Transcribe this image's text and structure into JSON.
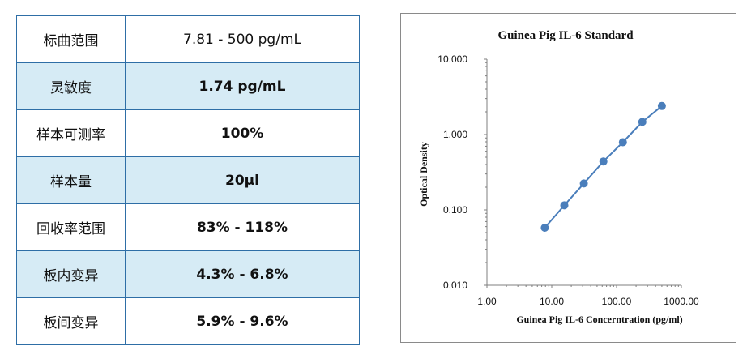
{
  "spec_table": {
    "rows": [
      {
        "label": "标曲范围",
        "value": "7.81 - 500 pg/mL"
      },
      {
        "label": "灵敏度",
        "value": "1.74 pg/mL"
      },
      {
        "label": "样本可测率",
        "value": "100%"
      },
      {
        "label": "样本量",
        "value": "20μl"
      },
      {
        "label": "回收率范围",
        "value": "83% - 118%"
      },
      {
        "label": "板内变异",
        "value": "4.3% - 6.8%"
      },
      {
        "label": "板间变异",
        "value": "5.9% - 9.6%"
      }
    ]
  },
  "colors": {
    "table_border": "#2e6ea6",
    "row_shade": "#d6ebf5",
    "series": "#4a7ebb"
  },
  "chart_data": {
    "type": "line",
    "title": "Guinea Pig IL-6 Standard",
    "xlabel": "Guinea Pig IL-6 Concerntration (pg/ml)",
    "ylabel": "Optical Density",
    "x_scale": "log",
    "y_scale": "log",
    "xlim": [
      1,
      1000
    ],
    "ylim": [
      0.01,
      10
    ],
    "x_ticks": [
      "1.00",
      "10.00",
      "100.00",
      "1000.00"
    ],
    "y_ticks": [
      "0.010",
      "0.100",
      "1.000",
      "10.000"
    ],
    "grid": false,
    "series": [
      {
        "x": [
          7.81,
          15.63,
          31.25,
          62.5,
          125,
          250,
          500
        ],
        "y": [
          0.058,
          0.115,
          0.224,
          0.44,
          0.79,
          1.47,
          2.39
        ]
      }
    ]
  }
}
